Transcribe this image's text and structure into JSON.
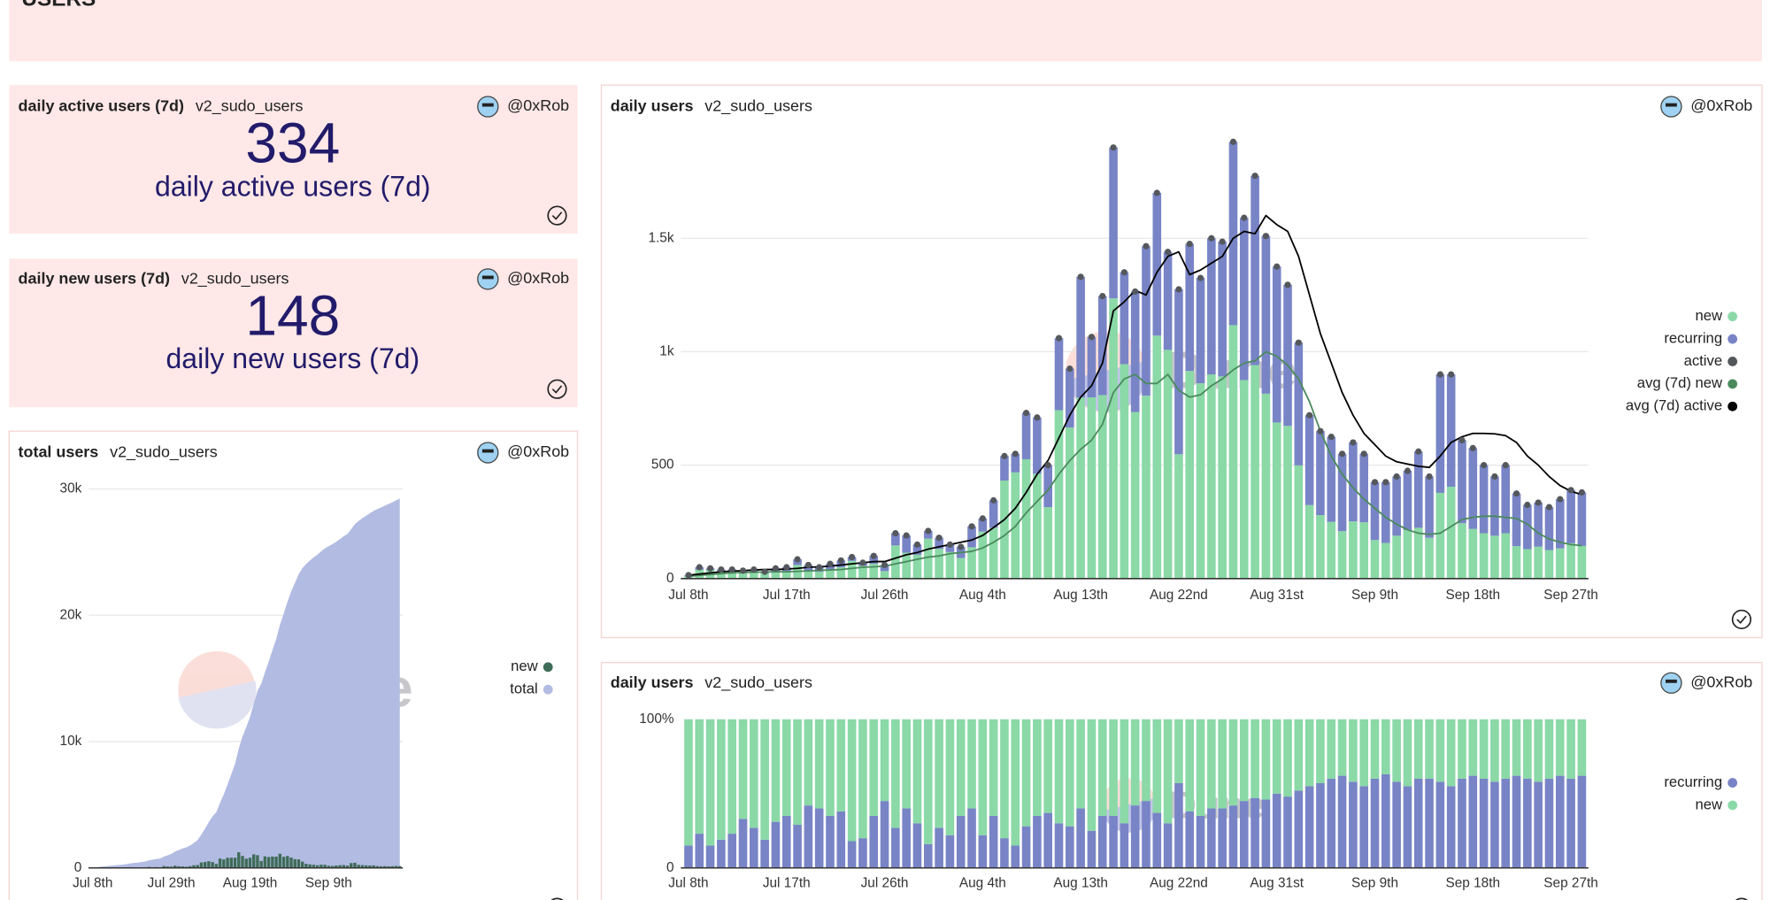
{
  "header": {
    "title": "USERS"
  },
  "watermark": "Dune",
  "counters": [
    {
      "title": "daily active users (7d)",
      "query": "v2_sudo_users",
      "author": "@0xRob",
      "value": 334,
      "label": "daily active users (7d)"
    },
    {
      "title": "daily new users (7d)",
      "query": "v2_sudo_users",
      "author": "@0xRob",
      "value": 148,
      "label": "daily new users (7d)"
    }
  ],
  "chart_data": [
    {
      "type": "area",
      "title": "total users",
      "query": "v2_sudo_users",
      "author": "@0xRob",
      "categories": [
        "Jul 8th",
        null,
        null,
        null,
        null,
        null,
        null,
        null,
        null,
        null,
        null,
        null,
        null,
        null,
        null,
        null,
        null,
        null,
        null,
        null,
        null,
        "Jul 29th",
        null,
        null,
        null,
        null,
        null,
        null,
        null,
        null,
        null,
        null,
        null,
        null,
        null,
        null,
        null,
        null,
        null,
        null,
        null,
        null,
        "Aug 19th",
        null,
        null,
        null,
        null,
        null,
        null,
        null,
        null,
        null,
        null,
        null,
        null,
        null,
        null,
        null,
        null,
        null,
        null,
        null,
        null,
        "Sep 9th",
        null,
        null,
        null,
        null,
        null,
        null,
        null,
        null,
        null,
        null,
        null,
        null,
        null,
        null,
        null,
        null,
        null,
        null,
        null
      ],
      "series": [
        {
          "name": "new",
          "type": "bar",
          "color": "#3e6c58",
          "values": [
            13,
            39,
            38,
            32,
            31,
            23,
            29,
            24,
            31,
            33,
            60,
            35,
            30,
            42,
            50,
            78,
            56,
            65,
            33,
            146,
            114,
            105,
            176,
            131,
            117,
            91,
            138,
            207,
            224,
            432,
            468,
            526,
            462,
            315,
            742,
            666,
            798,
            799,
            809,
            1235,
            945,
            734,
            806,
            1071,
            1008,
            548,
            915,
            861,
            900,
            891,
            1117,
            875,
            941,
            815,
            688,
            673,
            499,
            324,
            280,
            250,
            209,
            252,
            248,
            170,
            157,
            189,
            214,
            224,
            180,
            378,
            405,
            244,
            219,
            200,
            189,
            200,
            143,
            130,
            141,
            126,
            133,
            156,
            144
          ]
        },
        {
          "name": "total",
          "type": "area",
          "color": "#b2bbe2",
          "values": [
            13,
            50,
            90,
            120,
            150,
            175,
            205,
            230,
            260,
            295,
            355,
            390,
            420,
            460,
            510,
            590,
            645,
            710,
            745,
            890,
            1000,
            1110,
            1290,
            1420,
            1540,
            1630,
            1770,
            1980,
            2200,
            2630,
            3100,
            3630,
            4090,
            4400,
            5150,
            5810,
            6610,
            7410,
            8220,
            9450,
            10400,
            11130,
            11940,
            13010,
            14020,
            14570,
            15480,
            16340,
            17240,
            18130,
            19250,
            20120,
            21060,
            21880,
            22570,
            23240,
            23740,
            24060,
            24340,
            24590,
            24800,
            25050,
            25300,
            25470,
            25630,
            25820,
            26030,
            26250,
            26430,
            26810,
            27220,
            27460,
            27680,
            27880,
            28070,
            28270,
            28410,
            28540,
            28680,
            28810,
            28940,
            29100,
            29240
          ]
        }
      ],
      "ylim": [
        0,
        30000
      ],
      "yticks": [
        0,
        {
          "value": 10000,
          "label": "10k"
        },
        {
          "value": 20000,
          "label": "20k"
        },
        {
          "value": 30000,
          "label": "30k"
        }
      ],
      "grid": true,
      "legend": "right",
      "stacked": false
    },
    {
      "type": "bar",
      "title": "daily users",
      "query": "v2_sudo_users",
      "author": "@0xRob",
      "categories": [
        "Jul 8th",
        null,
        null,
        null,
        null,
        null,
        null,
        null,
        null,
        "Jul 17th",
        null,
        null,
        null,
        null,
        null,
        null,
        null,
        null,
        "Jul 26th",
        null,
        null,
        null,
        null,
        null,
        null,
        null,
        null,
        "Aug 4th",
        null,
        null,
        null,
        null,
        null,
        null,
        null,
        null,
        "Aug 13th",
        null,
        null,
        null,
        null,
        null,
        null,
        null,
        null,
        "Aug 22nd",
        null,
        null,
        null,
        null,
        null,
        null,
        null,
        null,
        "Aug 31st",
        null,
        null,
        null,
        null,
        null,
        null,
        null,
        null,
        "Sep 9th",
        null,
        null,
        null,
        null,
        null,
        null,
        null,
        null,
        "Sep 18th",
        null,
        null,
        null,
        null,
        null,
        null,
        null,
        null,
        "Sep 27th",
        null
      ],
      "series": [
        {
          "name": "new",
          "type": "bar",
          "color": "#8ad9a7",
          "values": [
            13,
            39,
            38,
            32,
            31,
            23,
            29,
            24,
            31,
            33,
            60,
            35,
            30,
            42,
            50,
            78,
            56,
            65,
            33,
            146,
            114,
            105,
            176,
            131,
            117,
            91,
            138,
            207,
            224,
            432,
            468,
            526,
            462,
            315,
            742,
            666,
            798,
            799,
            809,
            1235,
            945,
            734,
            806,
            1071,
            1008,
            548,
            915,
            861,
            900,
            891,
            1117,
            875,
            941,
            815,
            688,
            673,
            499,
            324,
            280,
            250,
            209,
            252,
            248,
            170,
            157,
            189,
            214,
            224,
            180,
            378,
            405,
            244,
            219,
            200,
            189,
            200,
            143,
            130,
            141,
            126,
            133,
            156,
            144
          ]
        },
        {
          "name": "recurring",
          "type": "bar",
          "color": "#7884c6",
          "values": [
            2,
            11,
            7,
            8,
            9,
            12,
            11,
            6,
            14,
            17,
            25,
            25,
            20,
            23,
            30,
            17,
            14,
            35,
            27,
            54,
            76,
            45,
            34,
            49,
            33,
            49,
            92,
            58,
            121,
            108,
            82,
            204,
            248,
            185,
            318,
            259,
            532,
            266,
            436,
            665,
            405,
            531,
            659,
            629,
            432,
            727,
            560,
            464,
            600,
            594,
            808,
            715,
            834,
            695,
            687,
            622,
            541,
            396,
            370,
            375,
            341,
            348,
            302,
            255,
            268,
            261,
            261,
            336,
            270,
            522,
            495,
            366,
            356,
            300,
            261,
            300,
            232,
            195,
            194,
            189,
            217,
            234,
            236
          ]
        },
        {
          "name": "active",
          "type": "dots",
          "color": "#54585c",
          "values": [
            15,
            50,
            45,
            40,
            40,
            35,
            40,
            30,
            45,
            50,
            85,
            60,
            50,
            65,
            80,
            95,
            70,
            100,
            60,
            200,
            190,
            150,
            210,
            180,
            150,
            140,
            230,
            265,
            345,
            540,
            550,
            730,
            710,
            500,
            1060,
            925,
            1330,
            1065,
            1245,
            1900,
            1350,
            1265,
            1465,
            1700,
            1440,
            1275,
            1475,
            1325,
            1500,
            1485,
            1925,
            1590,
            1775,
            1510,
            1375,
            1295,
            1040,
            720,
            650,
            625,
            550,
            600,
            550,
            425,
            425,
            450,
            475,
            560,
            450,
            900,
            900,
            610,
            575,
            500,
            450,
            500,
            375,
            325,
            335,
            315,
            350,
            390,
            380
          ]
        },
        {
          "name": "avg (7d) new",
          "type": "line",
          "color": "#4b8a5c",
          "values": [
            10,
            14,
            18,
            22,
            25,
            27,
            28,
            29,
            30,
            30,
            32,
            34,
            36,
            38,
            40,
            45,
            50,
            52,
            55,
            65,
            75,
            85,
            95,
            100,
            110,
            115,
            120,
            135,
            160,
            190,
            230,
            290,
            340,
            390,
            460,
            520,
            570,
            610,
            680,
            820,
            880,
            900,
            860,
            860,
            900,
            830,
            800,
            810,
            850,
            880,
            920,
            950,
            960,
            1000,
            980,
            940,
            880,
            780,
            650,
            540,
            460,
            400,
            350,
            310,
            270,
            240,
            215,
            200,
            195,
            200,
            230,
            260,
            270,
            275,
            275,
            270,
            265,
            240,
            200,
            175,
            160,
            150,
            145
          ]
        },
        {
          "name": "avg (7d) active",
          "type": "line",
          "color": "#000000",
          "values": [
            15,
            20,
            25,
            30,
            33,
            35,
            38,
            40,
            40,
            42,
            45,
            50,
            52,
            55,
            60,
            65,
            70,
            75,
            75,
            90,
            105,
            115,
            130,
            140,
            150,
            160,
            170,
            190,
            225,
            260,
            310,
            380,
            460,
            520,
            620,
            720,
            800,
            850,
            950,
            1180,
            1220,
            1270,
            1250,
            1350,
            1420,
            1440,
            1340,
            1360,
            1390,
            1420,
            1500,
            1530,
            1520,
            1600,
            1560,
            1530,
            1420,
            1250,
            1080,
            950,
            820,
            720,
            640,
            590,
            540,
            515,
            505,
            495,
            490,
            540,
            600,
            625,
            640,
            640,
            638,
            630,
            600,
            540,
            500,
            450,
            410,
            385,
            370
          ]
        }
      ],
      "ylim": [
        0,
        2000
      ],
      "yticks": [
        0,
        500,
        {
          "value": 1000,
          "label": "1k"
        },
        {
          "value": 1500,
          "label": "1.5k"
        }
      ],
      "grid": true,
      "legend": "right",
      "stacked": true
    },
    {
      "type": "bar",
      "title": "daily users",
      "query": "v2_sudo_users",
      "author": "@0xRob",
      "categories": [
        "Jul 8th",
        null,
        null,
        null,
        null,
        null,
        null,
        null,
        null,
        "Jul 17th",
        null,
        null,
        null,
        null,
        null,
        null,
        null,
        null,
        "Jul 26th",
        null,
        null,
        null,
        null,
        null,
        null,
        null,
        null,
        "Aug 4th",
        null,
        null,
        null,
        null,
        null,
        null,
        null,
        null,
        "Aug 13th",
        null,
        null,
        null,
        null,
        null,
        null,
        null,
        null,
        "Aug 22nd",
        null,
        null,
        null,
        null,
        null,
        null,
        null,
        null,
        "Aug 31st",
        null,
        null,
        null,
        null,
        null,
        null,
        null,
        null,
        "Sep 9th",
        null,
        null,
        null,
        null,
        null,
        null,
        null,
        null,
        "Sep 18th",
        null,
        null,
        null,
        null,
        null,
        null,
        null,
        null,
        "Sep 27th",
        null
      ],
      "series": [
        {
          "name": "recurring",
          "type": "bar",
          "color": "#7884c6",
          "values": [
            15,
            23,
            15,
            19,
            23,
            33,
            27,
            19,
            31,
            35,
            29,
            42,
            40,
            35,
            38,
            18,
            20,
            35,
            45,
            27,
            40,
            30,
            16,
            27,
            22,
            35,
            40,
            22,
            35,
            20,
            15,
            28,
            35,
            37,
            30,
            28,
            40,
            25,
            35,
            35,
            30,
            42,
            45,
            37,
            30,
            57,
            38,
            35,
            40,
            40,
            42,
            45,
            47,
            46,
            50,
            48,
            52,
            55,
            57,
            60,
            62,
            58,
            55,
            60,
            63,
            58,
            55,
            60,
            60,
            58,
            55,
            60,
            62,
            60,
            58,
            60,
            62,
            60,
            58,
            60,
            62,
            60,
            62
          ]
        },
        {
          "name": "new",
          "type": "bar",
          "color": "#8ad9a7",
          "values": [
            85,
            77,
            85,
            81,
            77,
            67,
            73,
            81,
            69,
            65,
            71,
            58,
            60,
            65,
            62,
            82,
            80,
            65,
            55,
            73,
            60,
            70,
            84,
            73,
            78,
            65,
            60,
            78,
            65,
            80,
            85,
            72,
            65,
            63,
            70,
            72,
            60,
            75,
            65,
            65,
            70,
            58,
            55,
            63,
            70,
            43,
            62,
            65,
            60,
            60,
            58,
            55,
            53,
            54,
            50,
            52,
            48,
            45,
            43,
            40,
            38,
            42,
            45,
            40,
            37,
            42,
            45,
            40,
            40,
            42,
            45,
            40,
            38,
            40,
            42,
            40,
            38,
            40,
            42,
            40,
            38,
            40,
            38
          ]
        }
      ],
      "ylim": [
        0,
        100
      ],
      "yticks": [
        0,
        {
          "value": 100,
          "label": "100%"
        }
      ],
      "grid": false,
      "legend": "right",
      "stacked": true
    }
  ]
}
